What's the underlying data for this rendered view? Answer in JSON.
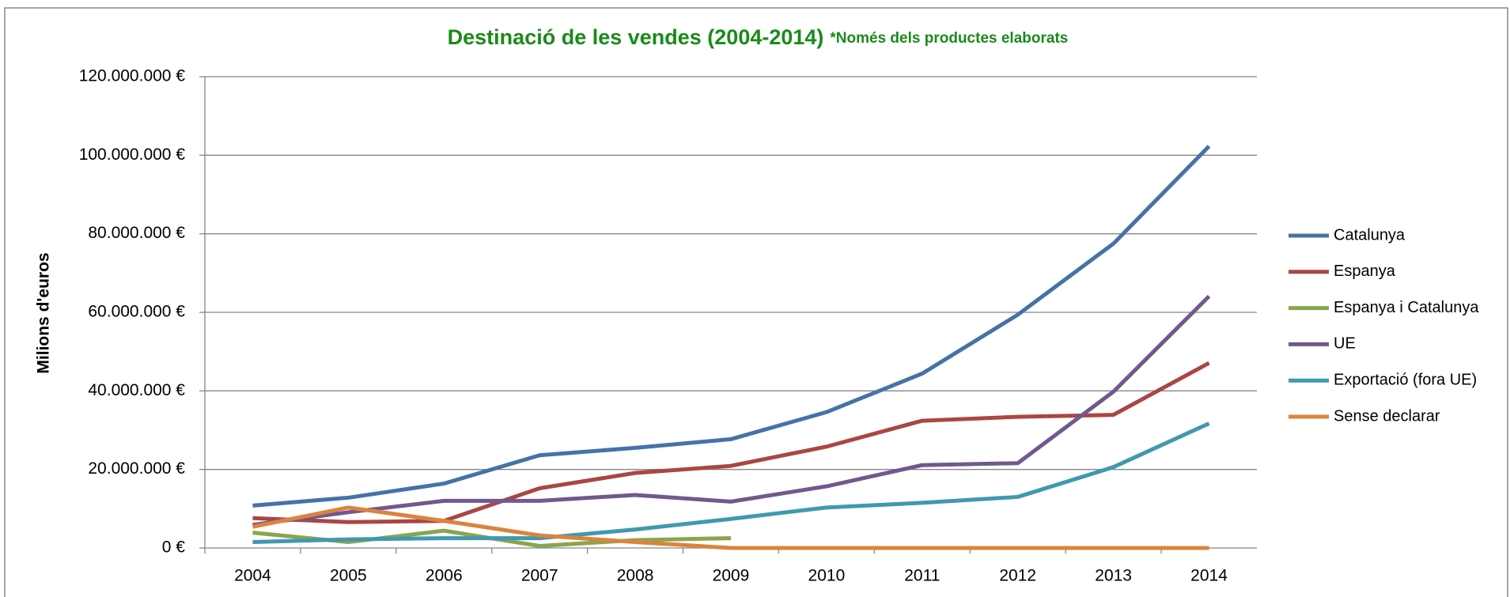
{
  "chart_data": {
    "type": "line",
    "title": "Destinació de les vendes (2004-2014)",
    "subtitle": "*Només dels productes elaborats",
    "ylabel": "Milions d'euros",
    "categories": [
      "2004",
      "2005",
      "2006",
      "2007",
      "2008",
      "2009",
      "2010",
      "2011",
      "2012",
      "2013",
      "2014"
    ],
    "series": [
      {
        "name": "Catalunya",
        "color": "#4572a7",
        "values": [
          10800000,
          12800000,
          16400000,
          23600000,
          25500000,
          27700000,
          34600000,
          44400000,
          59400000,
          77500000,
          102300000
        ]
      },
      {
        "name": "Espanya",
        "color": "#aa4643",
        "values": [
          7600000,
          6600000,
          6900000,
          15200000,
          19100000,
          20900000,
          25800000,
          32400000,
          33400000,
          33900000,
          47100000
        ]
      },
      {
        "name": "Espanya i Catalunya",
        "color": "#89a54e",
        "values": [
          3900000,
          1500000,
          4400000,
          500000,
          2000000,
          2500000,
          null,
          null,
          null,
          null,
          null
        ]
      },
      {
        "name": "UE",
        "color": "#71588f",
        "values": [
          5900000,
          9100000,
          12000000,
          12000000,
          13500000,
          11800000,
          15700000,
          21100000,
          21600000,
          39800000,
          64100000
        ]
      },
      {
        "name": "Exportació (fora UE)",
        "color": "#4198af",
        "values": [
          1500000,
          2200000,
          2500000,
          2500000,
          4700000,
          7400000,
          10300000,
          11500000,
          13000000,
          20600000,
          31700000
        ]
      },
      {
        "name": "Sense declarar",
        "color": "#db843d",
        "values": [
          5400000,
          10300000,
          6900000,
          3200000,
          1500000,
          0,
          0,
          0,
          0,
          0,
          0
        ]
      }
    ],
    "ylim": [
      0,
      120000000
    ],
    "yticks": [
      {
        "value": 0,
        "label": "0 €"
      },
      {
        "value": 20000000,
        "label": "20.000.000 €"
      },
      {
        "value": 40000000,
        "label": "40.000.000 €"
      },
      {
        "value": 60000000,
        "label": "60.000.000 €"
      },
      {
        "value": 80000000,
        "label": "80.000.000 €"
      },
      {
        "value": 100000000,
        "label": "100.000.000 €"
      },
      {
        "value": 120000000,
        "label": "120.000.000 €"
      }
    ],
    "grid": true,
    "legend": "right",
    "title_color": "#1a8a1a"
  }
}
